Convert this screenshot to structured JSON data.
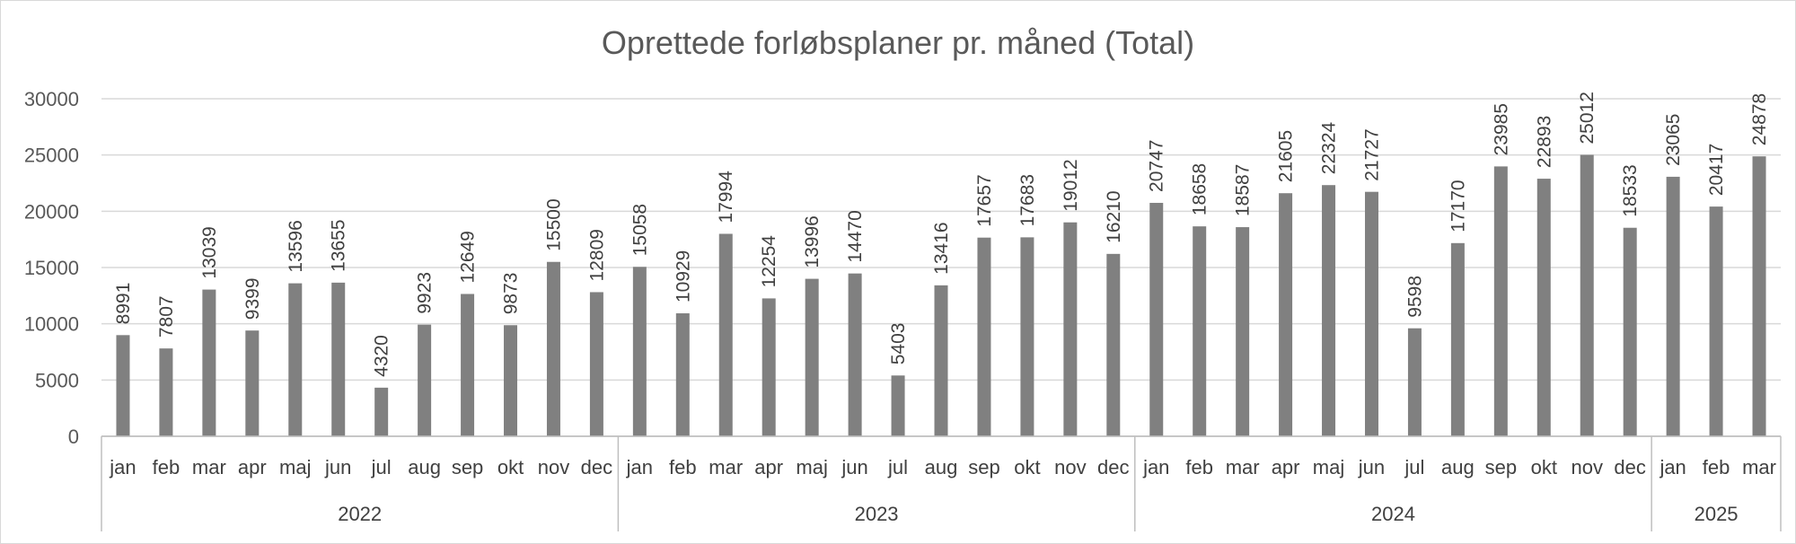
{
  "chart_data": {
    "type": "bar",
    "title": "Oprettede forløbsplaner pr. måned (Total)",
    "xlabel": "",
    "ylabel": "",
    "ylim": [
      0,
      30000
    ],
    "yticks": [
      0,
      5000,
      10000,
      15000,
      20000,
      25000,
      30000
    ],
    "grid": true,
    "bar_color": "#808080",
    "groups": [
      {
        "year": "2022",
        "months": [
          "jan",
          "feb",
          "mar",
          "apr",
          "maj",
          "jun",
          "jul",
          "aug",
          "sep",
          "okt",
          "nov",
          "dec"
        ],
        "values": [
          8991,
          7807,
          13039,
          9399,
          13596,
          13655,
          4320,
          9923,
          12649,
          9873,
          15500,
          12809
        ]
      },
      {
        "year": "2023",
        "months": [
          "jan",
          "feb",
          "mar",
          "apr",
          "maj",
          "jun",
          "jul",
          "aug",
          "sep",
          "okt",
          "nov",
          "dec"
        ],
        "values": [
          15058,
          10929,
          17994,
          12254,
          13996,
          14470,
          5403,
          13416,
          17657,
          17683,
          19012,
          16210
        ]
      },
      {
        "year": "2024",
        "months": [
          "jan",
          "feb",
          "mar",
          "apr",
          "maj",
          "jun",
          "jul",
          "aug",
          "sep",
          "okt",
          "nov",
          "dec"
        ],
        "values": [
          20747,
          18658,
          18587,
          21605,
          22324,
          21727,
          9598,
          17170,
          23985,
          22893,
          25012,
          18533
        ]
      },
      {
        "year": "2025",
        "months": [
          "jan",
          "feb",
          "mar"
        ],
        "values": [
          23065,
          20417,
          24878
        ]
      }
    ]
  }
}
